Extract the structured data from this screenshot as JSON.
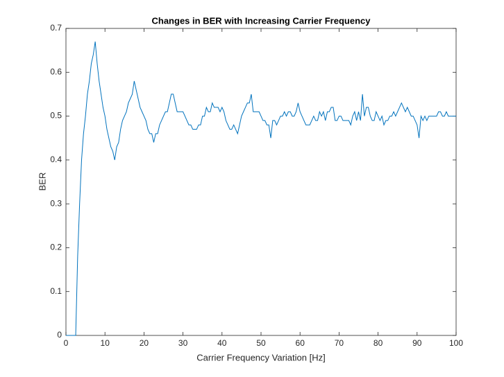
{
  "chart_data": {
    "type": "line",
    "title": "Changes in BER with Increasing Carrier Frequency",
    "x_label": "Carrier Frequency Variation [Hz]",
    "y_label": "BER",
    "xlim": [
      0,
      100
    ],
    "ylim": [
      0,
      0.7
    ],
    "xticks": [
      0,
      10,
      20,
      30,
      40,
      50,
      60,
      70,
      80,
      90,
      100
    ],
    "yticks": [
      0,
      0.1,
      0.2,
      0.3,
      0.4,
      0.5,
      0.6,
      0.7
    ],
    "grid": false,
    "series": [
      {
        "name": "BER",
        "color": "#0072BD",
        "x": [
          0,
          0.5,
          1,
          1.5,
          2,
          2.5,
          3,
          3.5,
          4,
          4.5,
          5,
          5.5,
          6,
          6.5,
          7,
          7.5,
          8,
          8.5,
          9,
          9.5,
          10,
          10.5,
          11,
          11.5,
          12,
          12.5,
          13,
          13.5,
          14,
          14.5,
          15,
          15.5,
          16,
          16.5,
          17,
          17.5,
          18,
          18.5,
          19,
          19.5,
          20,
          20.5,
          21,
          21.5,
          22,
          22.5,
          23,
          23.5,
          24,
          24.5,
          25,
          25.5,
          26,
          26.5,
          27,
          27.5,
          28,
          28.5,
          29,
          29.5,
          30,
          30.5,
          31,
          31.5,
          32,
          32.5,
          33,
          33.5,
          34,
          34.5,
          35,
          35.5,
          36,
          36.5,
          37,
          37.5,
          38,
          38.5,
          39,
          39.5,
          40,
          40.5,
          41,
          41.5,
          42,
          42.5,
          43,
          43.5,
          44,
          44.5,
          45,
          45.5,
          46,
          46.5,
          47,
          47.5,
          48,
          48.5,
          49,
          49.5,
          50,
          50.5,
          51,
          51.5,
          52,
          52.5,
          53,
          53.5,
          54,
          54.5,
          55,
          55.5,
          56,
          56.5,
          57,
          57.5,
          58,
          58.5,
          59,
          59.5,
          60,
          60.5,
          61,
          61.5,
          62,
          62.5,
          63,
          63.5,
          64,
          64.5,
          65,
          65.5,
          66,
          66.5,
          67,
          67.5,
          68,
          68.5,
          69,
          69.5,
          70,
          70.5,
          71,
          71.5,
          72,
          72.5,
          73,
          73.5,
          74,
          74.5,
          75,
          75.5,
          76,
          76.5,
          77,
          77.5,
          78,
          78.5,
          79,
          79.5,
          80,
          80.5,
          81,
          81.5,
          82,
          82.5,
          83,
          83.5,
          84,
          84.5,
          85,
          85.5,
          86,
          86.5,
          87,
          87.5,
          88,
          88.5,
          89,
          89.5,
          90,
          90.5,
          91,
          91.5,
          92,
          92.5,
          93,
          93.5,
          94,
          94.5,
          95,
          95.5,
          96,
          96.5,
          97,
          97.5,
          98,
          98.5,
          99,
          99.5,
          100
        ],
        "values": [
          0,
          0,
          0,
          0,
          0,
          0,
          0.18,
          0.3,
          0.4,
          0.46,
          0.5,
          0.55,
          0.58,
          0.62,
          0.64,
          0.67,
          0.62,
          0.58,
          0.55,
          0.52,
          0.5,
          0.47,
          0.45,
          0.43,
          0.42,
          0.4,
          0.43,
          0.44,
          0.47,
          0.49,
          0.5,
          0.51,
          0.53,
          0.54,
          0.55,
          0.58,
          0.56,
          0.54,
          0.52,
          0.51,
          0.5,
          0.49,
          0.47,
          0.46,
          0.46,
          0.44,
          0.46,
          0.46,
          0.48,
          0.49,
          0.5,
          0.51,
          0.51,
          0.53,
          0.55,
          0.55,
          0.53,
          0.51,
          0.51,
          0.51,
          0.51,
          0.5,
          0.49,
          0.48,
          0.48,
          0.47,
          0.47,
          0.47,
          0.48,
          0.48,
          0.5,
          0.5,
          0.52,
          0.51,
          0.51,
          0.53,
          0.52,
          0.52,
          0.52,
          0.51,
          0.52,
          0.51,
          0.49,
          0.48,
          0.47,
          0.47,
          0.48,
          0.47,
          0.46,
          0.48,
          0.5,
          0.51,
          0.52,
          0.53,
          0.53,
          0.55,
          0.51,
          0.51,
          0.51,
          0.51,
          0.5,
          0.49,
          0.49,
          0.48,
          0.48,
          0.45,
          0.49,
          0.49,
          0.48,
          0.49,
          0.5,
          0.5,
          0.51,
          0.5,
          0.51,
          0.51,
          0.5,
          0.5,
          0.51,
          0.53,
          0.51,
          0.5,
          0.49,
          0.48,
          0.48,
          0.48,
          0.49,
          0.5,
          0.49,
          0.49,
          0.51,
          0.5,
          0.51,
          0.49,
          0.51,
          0.51,
          0.52,
          0.52,
          0.49,
          0.49,
          0.5,
          0.5,
          0.49,
          0.49,
          0.49,
          0.49,
          0.48,
          0.5,
          0.51,
          0.49,
          0.51,
          0.49,
          0.55,
          0.5,
          0.52,
          0.52,
          0.5,
          0.49,
          0.49,
          0.51,
          0.5,
          0.49,
          0.5,
          0.48,
          0.49,
          0.49,
          0.5,
          0.5,
          0.51,
          0.5,
          0.51,
          0.52,
          0.53,
          0.52,
          0.51,
          0.52,
          0.51,
          0.5,
          0.5,
          0.49,
          0.48,
          0.45,
          0.5,
          0.49,
          0.5,
          0.49,
          0.5,
          0.5,
          0.5,
          0.5,
          0.5,
          0.51,
          0.51,
          0.5,
          0.5,
          0.51,
          0.5,
          0.5,
          0.5,
          0.5,
          0.5
        ]
      }
    ]
  }
}
